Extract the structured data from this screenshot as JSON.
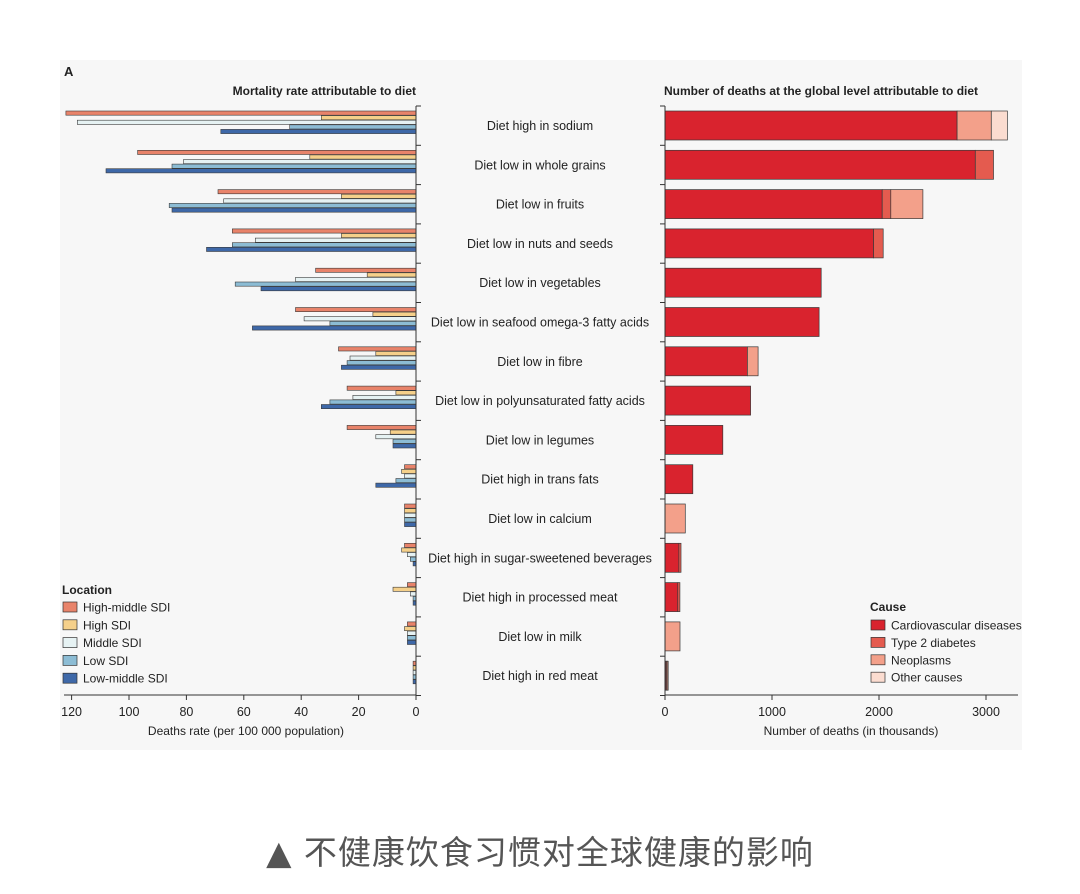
{
  "panel_label": "A",
  "caption": "▲ 不健康饮食习惯对全球健康的影响",
  "chart_data": [
    {
      "type": "bar",
      "orientation": "horizontal",
      "title": "Mortality rate attributable to diet",
      "xlabel": "Deaths rate (per 100 000 population)",
      "xlim": [
        0,
        125
      ],
      "x_reversed": true,
      "xticks": [
        "120",
        "100",
        "80",
        "60",
        "40",
        "20",
        "0"
      ],
      "legend_title": "Location",
      "legend_position": "bottom-left",
      "categories": [
        "Diet high in sodium",
        "Diet low in whole grains",
        "Diet low in fruits",
        "Diet low in nuts and seeds",
        "Diet low in vegetables",
        "Diet low in seafood omega-3 fatty acids",
        "Diet low in fibre",
        "Diet low in polyunsaturated fatty acids",
        "Diet low in legumes",
        "Diet high in trans fats",
        "Diet low in calcium",
        "Diet high in sugar-sweetened beverages",
        "Diet high in processed meat",
        "Diet low in milk",
        "Diet high in red meat"
      ],
      "series": [
        {
          "name": "High-middle SDI",
          "color": "#e8836a",
          "values": [
            122,
            97,
            69,
            64,
            35,
            42,
            27,
            24,
            24,
            4,
            4,
            4,
            3,
            3,
            1
          ]
        },
        {
          "name": "High SDI",
          "color": "#f5d08a",
          "values": [
            33,
            37,
            26,
            26,
            17,
            15,
            14,
            7,
            9,
            5,
            4,
            5,
            8,
            4,
            1
          ]
        },
        {
          "name": "Middle SDI",
          "color": "#e6f2f3",
          "values": [
            118,
            81,
            67,
            56,
            42,
            39,
            23,
            22,
            14,
            4,
            4,
            3,
            2,
            3,
            1
          ]
        },
        {
          "name": "Low SDI",
          "color": "#8cbcd4",
          "values": [
            44,
            85,
            86,
            64,
            63,
            30,
            24,
            30,
            8,
            7,
            4,
            2,
            1,
            3,
            1
          ]
        },
        {
          "name": "Low-middle SDI",
          "color": "#3e68a8",
          "values": [
            68,
            108,
            85,
            73,
            54,
            57,
            26,
            33,
            8,
            14,
            4,
            1,
            1,
            3,
            1
          ]
        }
      ]
    },
    {
      "type": "bar",
      "orientation": "horizontal",
      "stacked": true,
      "title": "Number of deaths at the global level attributable to diet",
      "xlabel": "Number of deaths (in thousands)",
      "xlim": [
        0,
        3300
      ],
      "xticks": [
        "0",
        "1000",
        "2000",
        "3000"
      ],
      "legend_title": "Cause",
      "legend_position": "bottom-right",
      "categories": [
        "Diet high in sodium",
        "Diet low in whole grains",
        "Diet low in fruits",
        "Diet low in nuts and seeds",
        "Diet low in vegetables",
        "Diet low in seafood omega-3 fatty acids",
        "Diet low in fibre",
        "Diet low in polyunsaturated fatty acids",
        "Diet low in legumes",
        "Diet high in trans fats",
        "Diet low in calcium",
        "Diet high in sugar-sweetened beverages",
        "Diet high in processed meat",
        "Diet low in milk",
        "Diet high in red meat"
      ],
      "series": [
        {
          "name": "Cardiovascular diseases",
          "color": "#d9232e",
          "values": [
            2730,
            2900,
            2030,
            1950,
            1460,
            1440,
            770,
            800,
            540,
            260,
            0,
            130,
            120,
            0,
            10
          ]
        },
        {
          "name": "Type 2 diabetes",
          "color": "#e45b4f",
          "values": [
            0,
            170,
            80,
            90,
            0,
            0,
            0,
            0,
            0,
            0,
            0,
            20,
            20,
            0,
            10
          ]
        },
        {
          "name": "Neoplasms",
          "color": "#f3a08a",
          "values": [
            320,
            0,
            300,
            0,
            0,
            0,
            100,
            0,
            0,
            0,
            190,
            0,
            0,
            140,
            10
          ]
        },
        {
          "name": "Other causes",
          "color": "#fbdcd0",
          "values": [
            150,
            0,
            0,
            0,
            0,
            0,
            0,
            0,
            0,
            0,
            0,
            0,
            0,
            0,
            0
          ]
        }
      ]
    }
  ]
}
